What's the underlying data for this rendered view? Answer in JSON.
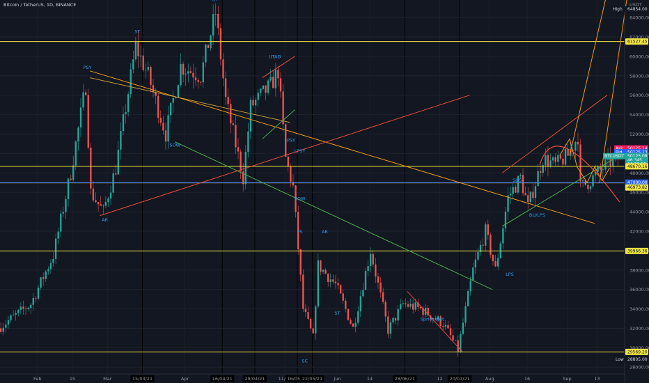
{
  "window": {
    "title": "Bitcoin / TetherUS, 1D, BINANCE"
  },
  "price_axis": {
    "unit": "USDT",
    "ticks": [
      "64000.00",
      "62000.00",
      "60000.00",
      "58000.00",
      "56000.00",
      "54000.00",
      "52000.00",
      "50000.00",
      "48000.00",
      "46000.00",
      "44000.00",
      "42000.00",
      "40000.00",
      "38000.00",
      "36000.00",
      "34000.00",
      "32000.00",
      "30000.00",
      "28000.00"
    ],
    "tags": [
      {
        "label": "High",
        "value": "64854.00",
        "price": 64854,
        "bg": "#131722",
        "fg": "#d1d4dc"
      },
      {
        "label": "",
        "value": "61527.45",
        "price": 61527.45,
        "bg": "#f0e442",
        "fg": "#131722"
      },
      {
        "label": "Ask",
        "value": "50125.14",
        "price": 50525,
        "bg": "#e91e63",
        "fg": "#ffffff"
      },
      {
        "label": "Bid",
        "value": "50125.13",
        "price": 50125,
        "bg": "#2962ff",
        "fg": "#ffffff"
      },
      {
        "label": "BTCUSDT",
        "value": "50125.08",
        "price": 49725,
        "bg": "#26a69a",
        "fg": "#ffffff"
      },
      {
        "label": "",
        "value": "46.345",
        "price": 49325,
        "bg": "#26a69a",
        "fg": "#ffffff"
      },
      {
        "label": "",
        "value": "14:26:58",
        "price": 48925,
        "bg": "#26a69a",
        "fg": "#ffffff"
      },
      {
        "label": "",
        "value": "48670.16",
        "price": 48670.16,
        "bg": "#f0e442",
        "fg": "#131722"
      },
      {
        "label": "",
        "value": "47000.00",
        "price": 47000,
        "bg": "#2962ff",
        "fg": "#ffffff"
      },
      {
        "label": "",
        "value": "46973.82",
        "price": 46500,
        "bg": "#f0e442",
        "fg": "#131722"
      },
      {
        "label": "",
        "value": "39966.36",
        "price": 39966.36,
        "bg": "#f0e442",
        "fg": "#131722"
      },
      {
        "label": "",
        "value": "29569.20",
        "price": 29569.2,
        "bg": "#f0e442",
        "fg": "#131722"
      },
      {
        "label": "Low",
        "value": "28805.00",
        "price": 28805,
        "bg": "#131722",
        "fg": "#d1d4dc"
      }
    ]
  },
  "time_axis": {
    "ticks": [
      "Feb",
      "15",
      "Mar",
      "15/03/21",
      "Apr",
      "16/04/21",
      "29/04/21",
      "11/05",
      "16/05/21",
      "22/05/21",
      "Jun",
      "14",
      "28/06/21",
      "12",
      "20/07/21",
      "Aug",
      "16",
      "Sep",
      "13"
    ],
    "highlighted": [
      "15/03/21",
      "16/04/21",
      "29/04/21",
      "16/05/21",
      "22/05/21",
      "28/06/21",
      "20/07/21"
    ]
  },
  "chart_data": {
    "type": "candlestick",
    "symbol": "BTCUSDT",
    "interval": "1D",
    "exchange": "BINANCE",
    "ylim": [
      27300,
      65800
    ],
    "xlim": [
      "2021-01-17",
      "2021-09-24"
    ],
    "price_path": [
      [
        "2021-01-17",
        32000
      ],
      [
        "2021-01-30",
        34500
      ],
      [
        "2021-02-08",
        39500
      ],
      [
        "2021-02-15",
        48000
      ],
      [
        "2021-02-21",
        57000
      ],
      [
        "2021-02-23",
        46000
      ],
      [
        "2021-02-28",
        44000
      ],
      [
        "2021-03-05",
        48500
      ],
      [
        "2021-03-13",
        61000
      ],
      [
        "2021-03-18",
        58000
      ],
      [
        "2021-03-25",
        52000
      ],
      [
        "2021-03-31",
        59000
      ],
      [
        "2021-04-08",
        58000
      ],
      [
        "2021-04-14",
        64500
      ],
      [
        "2021-04-18",
        55500
      ],
      [
        "2021-04-25",
        47500
      ],
      [
        "2021-04-28",
        54800
      ],
      [
        "2021-05-06",
        57000
      ],
      [
        "2021-05-09",
        58500
      ],
      [
        "2021-05-12",
        49500
      ],
      [
        "2021-05-15",
        46500
      ],
      [
        "2021-05-19",
        34000
      ],
      [
        "2021-05-23",
        31000
      ],
      [
        "2021-05-25",
        38500
      ],
      [
        "2021-06-01",
        36500
      ],
      [
        "2021-06-08",
        32000
      ],
      [
        "2021-06-15",
        40000
      ],
      [
        "2021-06-22",
        31800
      ],
      [
        "2021-06-28",
        34500
      ],
      [
        "2021-07-05",
        34000
      ],
      [
        "2021-07-14",
        32500
      ],
      [
        "2021-07-20",
        29800
      ],
      [
        "2021-07-26",
        38000
      ],
      [
        "2021-07-31",
        42000
      ],
      [
        "2021-08-04",
        38000
      ],
      [
        "2021-08-09",
        45500
      ],
      [
        "2021-08-14",
        47500
      ],
      [
        "2021-08-17",
        44500
      ],
      [
        "2021-08-23",
        49500
      ],
      [
        "2021-08-28",
        48800
      ],
      [
        "2021-09-02",
        49800
      ],
      [
        "2021-09-06",
        51800
      ],
      [
        "2021-09-07",
        46500
      ],
      [
        "2021-09-10",
        47000
      ],
      [
        "2021-09-14",
        48000
      ],
      [
        "2021-09-18",
        49000
      ],
      [
        "2021-09-22",
        49500
      ]
    ],
    "horizontal_levels": [
      {
        "price": 61527.45,
        "color": "#f0e442"
      },
      {
        "price": 48670.16,
        "color": "#f0e442"
      },
      {
        "price": 46973.82,
        "color": "#f0e442"
      },
      {
        "price": 47000,
        "color": "#2962ff"
      },
      {
        "price": 39966.36,
        "color": "#f0e442"
      },
      {
        "price": 29569.2,
        "color": "#f0e442"
      }
    ],
    "trendlines": [
      {
        "from": [
          "2021-02-22",
          58500
        ],
        "to": [
          "2021-09-12",
          42800
        ],
        "color": "#f39c12"
      },
      {
        "from": [
          "2021-02-22",
          57800
        ],
        "to": [
          "2021-05-13",
          53200
        ],
        "color": "#c49a3a"
      },
      {
        "from": [
          "2021-03-28",
          51200
        ],
        "to": [
          "2021-08-02",
          36000
        ],
        "color": "#4caf50"
      },
      {
        "from": [
          "2021-02-26",
          43600
        ],
        "to": [
          "2021-07-24",
          56000
        ],
        "color": "#e74c3c"
      },
      {
        "from": [
          "2021-05-02",
          57800
        ],
        "to": [
          "2021-05-15",
          60000
        ],
        "color": "#e74c3c"
      },
      {
        "from": [
          "2021-05-02",
          51500
        ],
        "to": [
          "2021-05-15",
          54500
        ],
        "color": "#4caf50"
      },
      {
        "from": [
          "2021-08-06",
          48000
        ],
        "to": [
          "2021-09-17",
          56000
        ],
        "color": "#e74c3c"
      },
      {
        "from": [
          "2021-08-06",
          42500
        ],
        "to": [
          "2021-09-22",
          49800
        ],
        "color": "#4caf50"
      },
      {
        "from": [
          "2021-06-29",
          35800
        ],
        "to": [
          "2021-07-21",
          29600
        ],
        "color": "#e74c3c"
      },
      {
        "from": [
          "2021-09-02",
          49800
        ],
        "to": [
          "2021-09-29",
          80000
        ],
        "color": "#f39c12"
      },
      {
        "from": [
          "2021-09-14",
          47000
        ],
        "to": [
          "2021-10-03",
          80000
        ],
        "color": "#f39c12"
      }
    ],
    "projection_path": [
      [
        "2021-08-29",
        49800
      ],
      [
        "2021-09-02",
        51500
      ],
      [
        "2021-09-05",
        48600
      ],
      [
        "2021-09-09",
        47000
      ],
      [
        "2021-09-12",
        48600
      ],
      [
        "2021-09-15",
        47200
      ],
      [
        "2021-09-18",
        48500
      ]
    ],
    "arc": {
      "start": [
        "2021-08-21",
        48800
      ],
      "peak": [
        "2021-09-01",
        50500
      ],
      "end": [
        "2021-09-22",
        45000
      ],
      "color": "#e74c3c"
    },
    "annotations": [
      {
        "text": "PSY",
        "date": "2021-02-21",
        "price": 58700
      },
      {
        "text": "ST",
        "date": "2021-03-13",
        "price": 62400
      },
      {
        "text": "UT",
        "date": "2021-04-13",
        "price": 65700
      },
      {
        "text": "UTAD",
        "date": "2021-05-07",
        "price": 59800
      },
      {
        "text": "SOW",
        "date": "2021-03-28",
        "price": 50700
      },
      {
        "text": "LPSY",
        "date": "2021-05-13",
        "price": 51200
      },
      {
        "text": "LPSY",
        "date": "2021-05-17",
        "price": 50100
      },
      {
        "text": "SOW",
        "date": "2021-05-17",
        "price": 45200
      },
      {
        "text": "AR",
        "date": "2021-02-28",
        "price": 43000
      },
      {
        "text": "PS",
        "date": "2021-05-17",
        "price": 41800
      },
      {
        "text": "AR",
        "date": "2021-05-27",
        "price": 41800
      },
      {
        "text": "ST",
        "date": "2021-06-01",
        "price": 33400
      },
      {
        "text": "SC",
        "date": "2021-05-19",
        "price": 28500
      },
      {
        "text": "Sprint test",
        "date": "2021-07-09",
        "price": 32800
      },
      {
        "text": "SOS",
        "date": "2021-08-12",
        "price": 47100
      },
      {
        "text": "BU/LPS",
        "date": "2021-08-20",
        "price": 43500
      },
      {
        "text": "LPS",
        "date": "2021-08-09",
        "price": 37400
      }
    ]
  }
}
